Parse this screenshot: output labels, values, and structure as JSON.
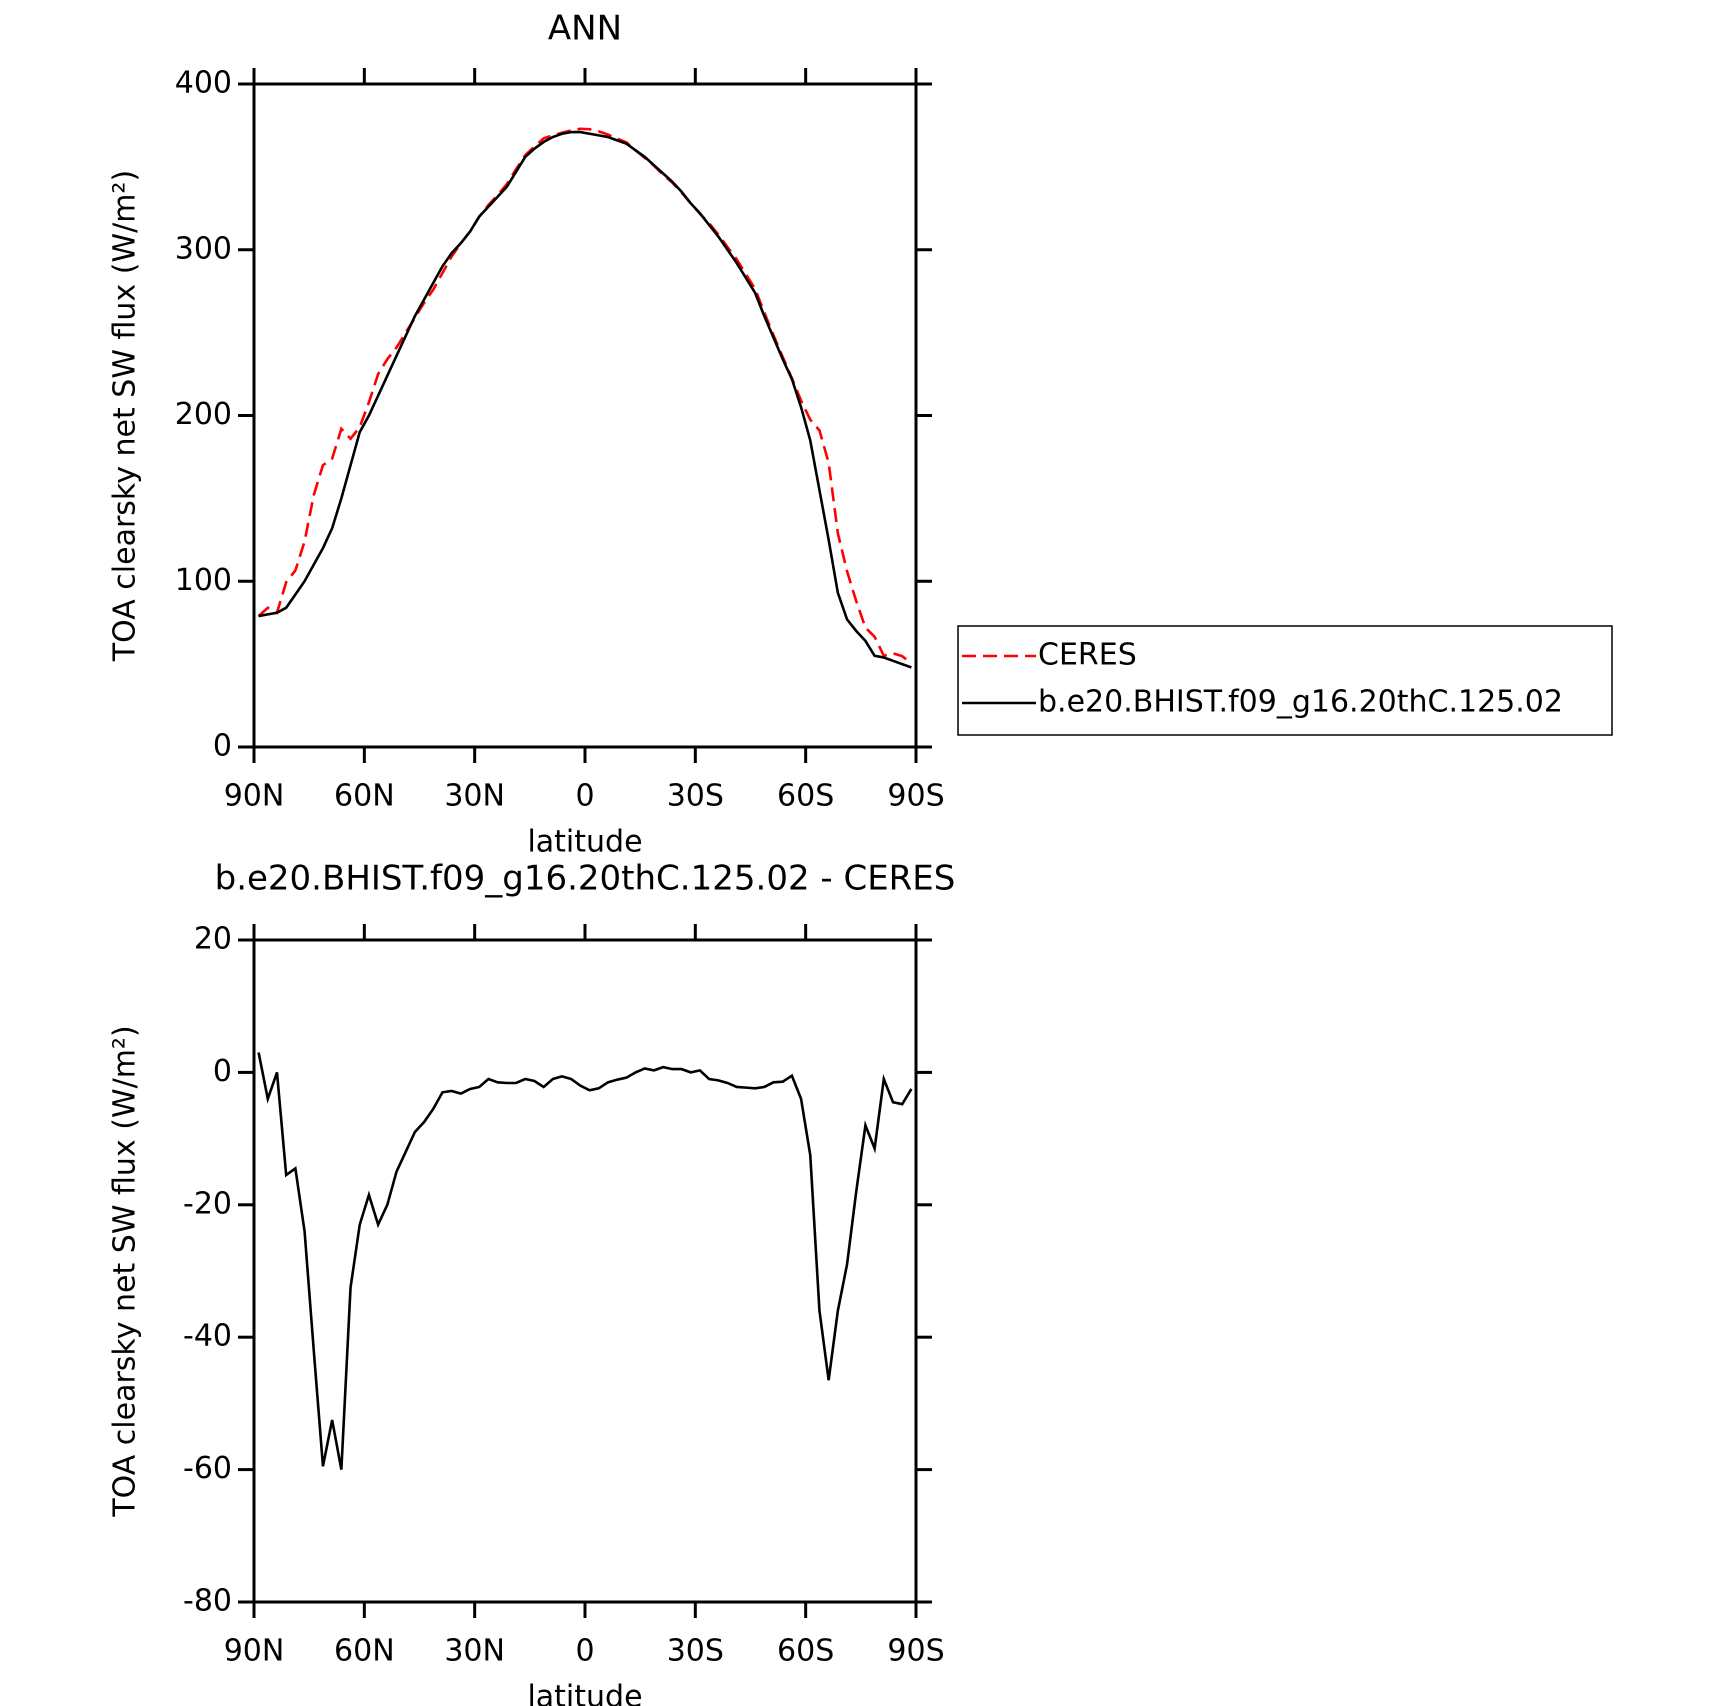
{
  "chart_data": [
    {
      "type": "line",
      "title": "ANN",
      "xlabel": "latitude",
      "ylabel": "TOA clearsky net SW flux (W/m²)",
      "x": [
        88.75,
        86.25,
        83.75,
        81.25,
        78.75,
        76.25,
        73.75,
        71.25,
        68.75,
        66.25,
        63.75,
        61.25,
        58.75,
        56.25,
        53.75,
        51.25,
        48.75,
        46.25,
        43.75,
        41.25,
        38.75,
        36.25,
        33.75,
        31.25,
        28.75,
        26.25,
        23.75,
        21.25,
        18.75,
        16.25,
        13.75,
        11.25,
        8.75,
        6.25,
        3.75,
        1.25,
        -1.25,
        -3.75,
        -6.25,
        -8.75,
        -11.25,
        -13.75,
        -16.25,
        -18.75,
        -21.25,
        -23.75,
        -26.25,
        -28.75,
        -31.25,
        -33.75,
        -36.25,
        -38.75,
        -41.25,
        -43.75,
        -46.25,
        -48.75,
        -51.25,
        -53.75,
        -56.25,
        -58.75,
        -61.25,
        -63.75,
        -66.25,
        -68.75,
        -71.25,
        -73.75,
        -76.25,
        -78.75,
        -81.25,
        -83.75,
        -86.25,
        -88.75
      ],
      "series": [
        {
          "name": "CERES",
          "color": "#ff0000",
          "linestyle": "dashed",
          "values": [
            79,
            84,
            81,
            99.5,
            106.5,
            124,
            152,
            170,
            174,
            192,
            186,
            193,
            208,
            225,
            234,
            241,
            250,
            259,
            268,
            276,
            286,
            296,
            304,
            311,
            320,
            327,
            333,
            339.6,
            348.6,
            357,
            362.3,
            367.2,
            369,
            370.6,
            372,
            373,
            372.7,
            371.4,
            369.5,
            367.1,
            364.8,
            360,
            355.4,
            350.7,
            345.2,
            340.5,
            334.5,
            328,
            321.7,
            316,
            309.2,
            301.6,
            294.2,
            285.3,
            276.4,
            262.2,
            248.5,
            235.4,
            222.5,
            209,
            197.5,
            191,
            171.5,
            129,
            106,
            88,
            72,
            66.5,
            55,
            56.5,
            54.8,
            50.5
          ]
        },
        {
          "name": "b.e20.BHIST.f09_g16.20thC.125.02",
          "color": "#000000",
          "linestyle": "solid",
          "values": [
            79,
            80,
            81,
            84,
            92,
            100,
            110,
            120,
            132,
            150,
            170,
            190,
            200,
            212,
            224,
            236,
            248,
            260,
            270,
            280,
            290,
            298,
            304,
            311,
            320,
            326,
            332,
            338,
            347,
            356,
            361,
            365,
            368,
            370,
            371,
            371,
            370,
            369,
            368,
            366,
            364,
            360,
            356,
            351,
            346,
            341,
            335,
            328,
            322,
            315,
            308,
            300,
            292,
            283,
            274,
            260,
            247,
            234,
            222,
            205,
            185,
            155,
            125,
            93,
            77,
            70,
            64,
            55,
            54,
            52,
            50,
            48
          ]
        }
      ],
      "xlim": [
        90,
        -90
      ],
      "xticks": [
        {
          "value": 90,
          "label": "90N"
        },
        {
          "value": 60,
          "label": "60N"
        },
        {
          "value": 30,
          "label": "30N"
        },
        0,
        {
          "value": -30,
          "label": "30S"
        },
        {
          "value": -60,
          "label": "60S"
        },
        {
          "value": -90,
          "label": "90S"
        }
      ],
      "ylim": [
        0,
        400
      ],
      "yticks": [
        0,
        100,
        200,
        300,
        400
      ],
      "legend": "outside right"
    },
    {
      "type": "line",
      "title": "b.e20.BHIST.f09_g16.20thC.125.02 - CERES",
      "xlabel": "latitude",
      "ylabel": "TOA clearsky net SW flux (W/m²)",
      "x": [
        88.75,
        86.25,
        83.75,
        81.25,
        78.75,
        76.25,
        73.75,
        71.25,
        68.75,
        66.25,
        63.75,
        61.25,
        58.75,
        56.25,
        53.75,
        51.25,
        48.75,
        46.25,
        43.75,
        41.25,
        38.75,
        36.25,
        33.75,
        31.25,
        28.75,
        26.25,
        23.75,
        21.25,
        18.75,
        16.25,
        13.75,
        11.25,
        8.75,
        6.25,
        3.75,
        1.25,
        -1.25,
        -3.75,
        -6.25,
        -8.75,
        -11.25,
        -13.75,
        -16.25,
        -18.75,
        -21.25,
        -23.75,
        -26.25,
        -28.75,
        -31.25,
        -33.75,
        -36.25,
        -38.75,
        -41.25,
        -43.75,
        -46.25,
        -48.75,
        -51.25,
        -53.75,
        -56.25,
        -58.75,
        -61.25,
        -63.75,
        -66.25,
        -68.75,
        -71.25,
        -73.75,
        -76.25,
        -78.75,
        -81.25,
        -83.75,
        -86.25,
        -88.75
      ],
      "series": [
        {
          "name": "b.e20.BHIST.f09_g16.20thC.125.02",
          "color": "#000000",
          "linestyle": "solid",
          "values": [
            3,
            -4,
            0,
            -15.5,
            -14.5,
            -24,
            -42,
            -59.5,
            -52.5,
            -60,
            -32.5,
            -23,
            -18.5,
            -23,
            -20,
            -15,
            -12,
            -9,
            -7.5,
            -5.5,
            -3,
            -2.8,
            -3.2,
            -2.5,
            -2.2,
            -1,
            -1.5,
            -1.6,
            -1.6,
            -1,
            -1.3,
            -2.2,
            -1,
            -0.6,
            -1,
            -2,
            -2.7,
            -2.4,
            -1.5,
            -1.1,
            -0.8,
            0,
            0.6,
            0.3,
            0.8,
            0.5,
            0.5,
            0,
            0.3,
            -1,
            -1.2,
            -1.6,
            -2.2,
            -2.3,
            -2.4,
            -2.2,
            -1.5,
            -1.4,
            -0.5,
            -4,
            -12.5,
            -36,
            -46.5,
            -36,
            -29,
            -18,
            -8,
            -11.5,
            -1,
            -4.5,
            -4.8,
            -2.5
          ]
        }
      ],
      "xlim": [
        90,
        -90
      ],
      "xticks": [
        {
          "value": 90,
          "label": "90N"
        },
        {
          "value": 60,
          "label": "60N"
        },
        {
          "value": 30,
          "label": "30N"
        },
        0,
        {
          "value": -30,
          "label": "30S"
        },
        {
          "value": -60,
          "label": "60S"
        },
        {
          "value": -90,
          "label": "90S"
        }
      ],
      "ylim": [
        -80,
        20
      ],
      "yticks": [
        -80,
        -60,
        -40,
        -20,
        0,
        20
      ]
    }
  ]
}
